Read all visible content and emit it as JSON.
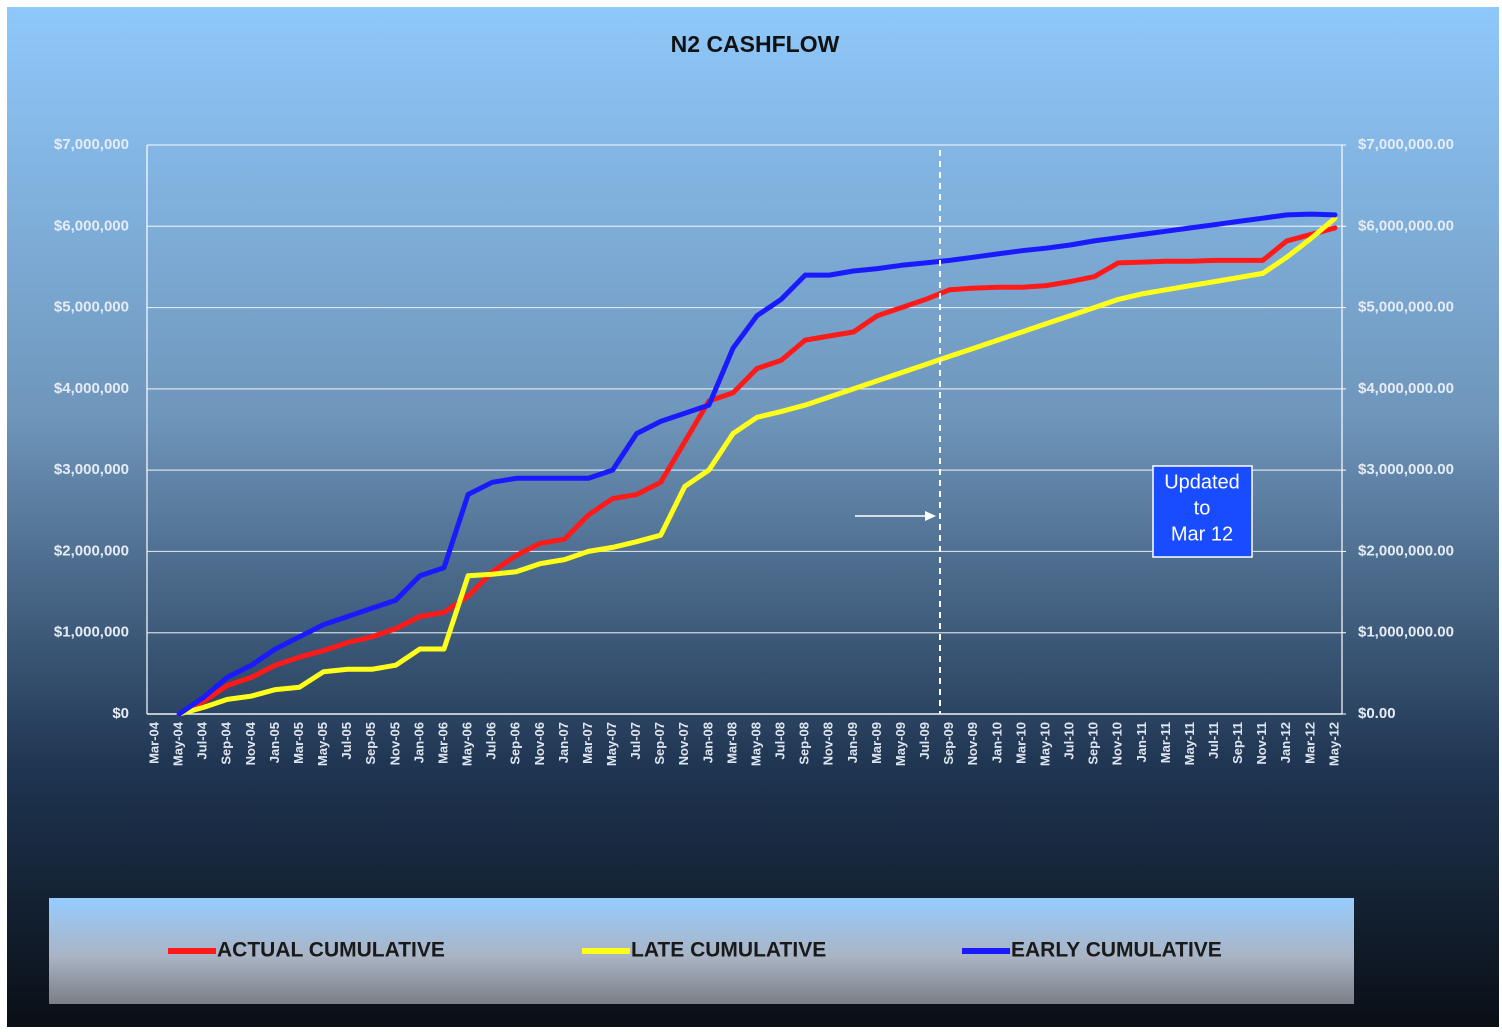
{
  "chart_data": {
    "type": "line",
    "title": "N2 CASHFLOW",
    "categories": [
      "Mar-04",
      "May-04",
      "Jul-04",
      "Sep-04",
      "Nov-04",
      "Jan-05",
      "Mar-05",
      "May-05",
      "Jul-05",
      "Sep-05",
      "Nov-05",
      "Jan-06",
      "Mar-06",
      "May-06",
      "Jul-06",
      "Sep-06",
      "Nov-06",
      "Jan-07",
      "Mar-07",
      "May-07",
      "Jul-07",
      "Sep-07",
      "Nov-07",
      "Jan-08",
      "Mar-08",
      "May-08",
      "Jul-08",
      "Sep-08",
      "Nov-08",
      "Jan-09",
      "Mar-09",
      "May-09",
      "Jul-09",
      "Sep-09",
      "Nov-09",
      "Jan-10",
      "Mar-10",
      "May-10",
      "Jul-10",
      "Sep-10",
      "Nov-10",
      "Jan-11",
      "Mar-11",
      "May-11",
      "Jul-11",
      "Sep-11",
      "Nov-11",
      "Jan-12",
      "Mar-12",
      "May-12"
    ],
    "series": [
      {
        "name": "ACTUAL CUMULATIVE",
        "color": "#ff1a1a",
        "values": [
          null,
          0,
          150000,
          350000,
          450000,
          600000,
          700000,
          780000,
          880000,
          950000,
          1050000,
          1200000,
          1250000,
          1450000,
          1750000,
          1950000,
          2100000,
          2150000,
          2450000,
          2650000,
          2700000,
          2850000,
          3350000,
          3850000,
          3950000,
          4250000,
          4350000,
          4600000,
          4650000,
          4700000,
          4900000,
          5000000,
          5100000,
          5220000,
          5240000,
          5250000,
          5250000,
          5270000,
          5320000,
          5380000,
          5550000,
          5560000,
          5570000,
          5570000,
          5580000,
          5580000,
          5580000,
          5820000,
          5900000,
          5980000
        ]
      },
      {
        "name": "LATE CUMULATIVE",
        "color": "#ffff1a",
        "values": [
          null,
          0,
          80000,
          180000,
          220000,
          300000,
          330000,
          520000,
          550000,
          550000,
          600000,
          800000,
          800000,
          1700000,
          1720000,
          1750000,
          1850000,
          1900000,
          2000000,
          2050000,
          2120000,
          2200000,
          2800000,
          3000000,
          3450000,
          3650000,
          3720000,
          3800000,
          3900000,
          4000000,
          4100000,
          4200000,
          4300000,
          4400000,
          4500000,
          4600000,
          4700000,
          4800000,
          4900000,
          5000000,
          5100000,
          5170000,
          5220000,
          5270000,
          5320000,
          5370000,
          5420000,
          5620000,
          5850000,
          6100000
        ]
      },
      {
        "name": "EARLY CUMULATIVE",
        "color": "#1a1aff",
        "values": [
          null,
          0,
          200000,
          450000,
          600000,
          800000,
          950000,
          1100000,
          1200000,
          1300000,
          1400000,
          1700000,
          1800000,
          2700000,
          2850000,
          2900000,
          2900000,
          2900000,
          2900000,
          3000000,
          3450000,
          3600000,
          3700000,
          3800000,
          4500000,
          4900000,
          5100000,
          5400000,
          5400000,
          5450000,
          5480000,
          5520000,
          5550000,
          5580000,
          5620000,
          5660000,
          5700000,
          5730000,
          5770000,
          5820000,
          5860000,
          5900000,
          5940000,
          5980000,
          6020000,
          6060000,
          6100000,
          6140000,
          6150000,
          6140000
        ]
      }
    ],
    "ylim": [
      0,
      7000000
    ],
    "yticks": [
      {
        "value": 0,
        "label": "$0"
      },
      {
        "value": 1000000,
        "label": "$1,000,000"
      },
      {
        "value": 2000000,
        "label": "$2,000,000"
      },
      {
        "value": 3000000,
        "label": "$3,000,000"
      },
      {
        "value": 4000000,
        "label": "$4,000,000"
      },
      {
        "value": 5000000,
        "label": "$5,000,000"
      },
      {
        "value": 6000000,
        "label": "$6,000,000"
      },
      {
        "value": 7000000,
        "label": "$7,000,000"
      }
    ],
    "y2lim": [
      0,
      7000000
    ],
    "y2ticks": [
      {
        "value": 0,
        "label": "$0.00"
      },
      {
        "value": 1000000,
        "label": "$1,000,000.00"
      },
      {
        "value": 2000000,
        "label": "$2,000,000.00"
      },
      {
        "value": 3000000,
        "label": "$3,000,000.00"
      },
      {
        "value": 4000000,
        "label": "$4,000,000.00"
      },
      {
        "value": 5000000,
        "label": "$5,000,000.00"
      },
      {
        "value": 6000000,
        "label": "$6,000,000.00"
      },
      {
        "value": 7000000,
        "label": "$7,000,000.00"
      }
    ],
    "grid": true,
    "legend": "bottom",
    "annotation": [
      "Updated",
      "to",
      "Mar 12"
    ]
  }
}
